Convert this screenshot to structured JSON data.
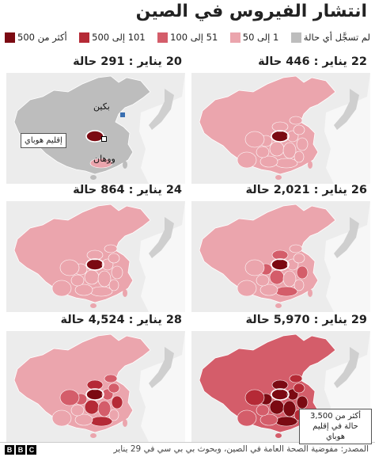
{
  "title": "انتشار الفيروس في الصين",
  "legend": [
    {
      "label": "أكثر من 500",
      "color": "#7b0a12"
    },
    {
      "label": "101 إلى 500",
      "color": "#b52a36"
    },
    {
      "label": "51 إلى 100",
      "color": "#d45d6a"
    },
    {
      "label": "1 إلى 50",
      "color": "#eba5ad"
    },
    {
      "label": "لم تسجَّل أي حالة",
      "color": "#bdbdbd"
    }
  ],
  "panels": [
    {
      "date": "22 يناير",
      "cases": "446 حالة",
      "level": 1
    },
    {
      "date": "20 يناير",
      "cases": "291 حالة",
      "level": 0
    },
    {
      "date": "26 يناير",
      "cases": "2,021 حالة",
      "level": 3
    },
    {
      "date": "24 يناير",
      "cases": "864 حالة",
      "level": 2
    },
    {
      "date": "29 يناير",
      "cases": "5,970 حالة",
      "level": 5
    },
    {
      "date": "28 يناير",
      "cases": "4,524 حالة",
      "level": 4
    }
  ],
  "labels": {
    "beijing": "بكين",
    "hubei": "إقليم هوباي",
    "wuhan": "ووهان",
    "callout": "أكثر من 3,500 حالة في إقليم هوباي"
  },
  "footer": {
    "source": "المصدر: مفوضية الصحة العامة في الصين، وبحوث بي بي سي في 29 يناير",
    "logo": [
      "B",
      "B",
      "C"
    ]
  }
}
